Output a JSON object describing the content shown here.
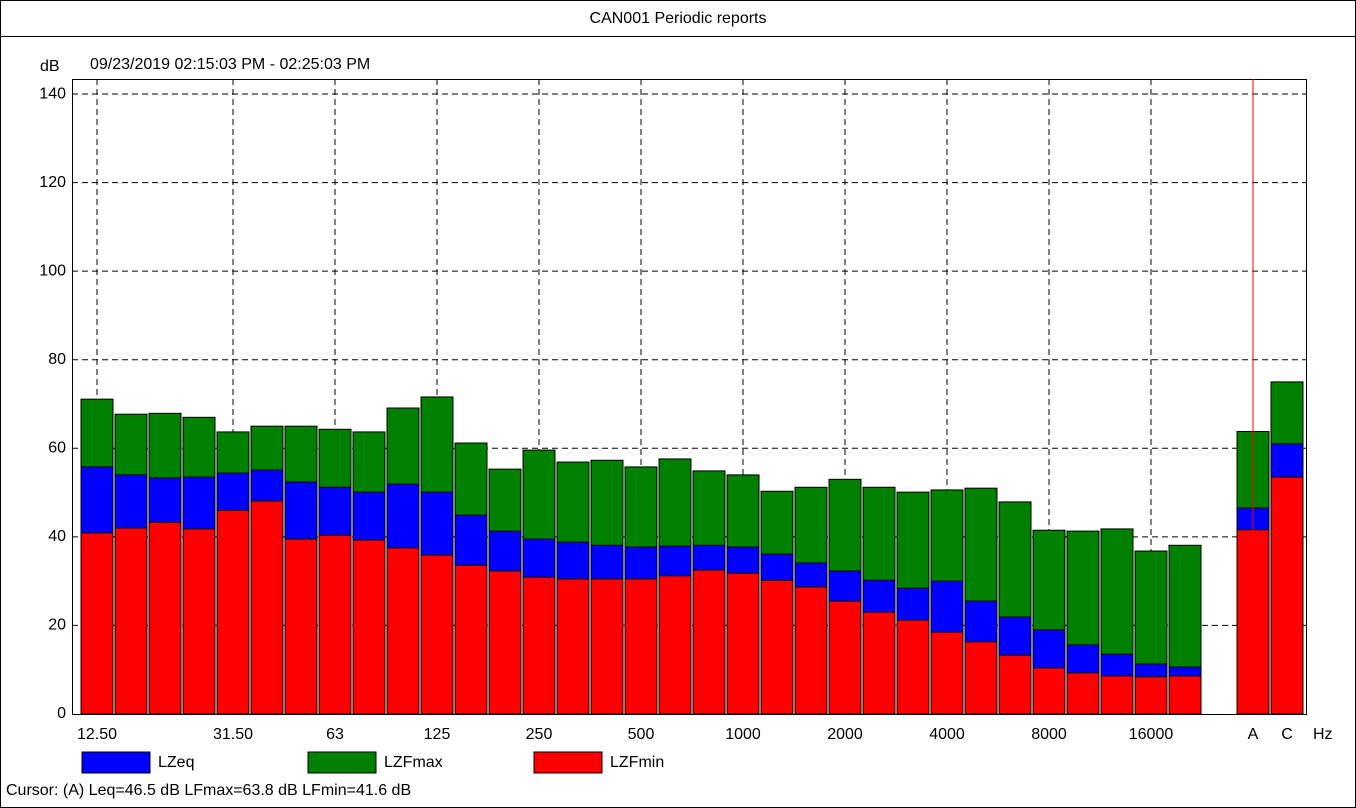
{
  "chart_data": {
    "type": "bar",
    "title": "CAN001 Periodic reports",
    "y_label": "dB",
    "subtitle": "09/23/2019 02:15:03 PM - 02:25:03 PM",
    "x_label": "Hz",
    "cursor_text": "Cursor: (A)  Leq=46.5 dB  LFmax=63.8 dB  LFmin=41.6 dB",
    "categories": [
      "12.50",
      null,
      null,
      null,
      "31.50",
      null,
      null,
      "63",
      null,
      null,
      "125",
      null,
      null,
      "250",
      null,
      null,
      "500",
      null,
      null,
      "1000",
      null,
      null,
      "2000",
      null,
      null,
      "4000",
      null,
      null,
      "8000",
      null,
      null,
      "16000",
      null,
      null,
      "A",
      "C"
    ],
    "series": [
      {
        "name": "LZeq",
        "color": "#0000ff",
        "values": [
          55.8,
          54.0,
          53.3,
          53.5,
          54.4,
          55.1,
          52.4,
          51.2,
          50.1,
          51.9,
          50.1,
          44.9,
          41.3,
          39.5,
          38.8,
          38.1,
          37.7,
          37.9,
          38.1,
          37.7,
          36.1,
          34.1,
          32.3,
          30.2,
          28.4,
          30.0,
          25.5,
          21.9,
          19.0,
          15.6,
          13.5,
          11.3,
          10.6,
          null,
          46.5,
          61.0
        ]
      },
      {
        "name": "LZFmax",
        "color": "#008000",
        "values": [
          71.1,
          67.7,
          67.9,
          67.0,
          63.7,
          65.0,
          65.0,
          64.3,
          63.7,
          69.1,
          71.6,
          61.2,
          55.3,
          59.6,
          56.9,
          57.3,
          55.8,
          57.6,
          54.9,
          54.0,
          50.3,
          51.2,
          53.0,
          51.2,
          50.1,
          50.6,
          51.0,
          47.9,
          41.5,
          41.3,
          41.8,
          36.8,
          38.1,
          null,
          63.8,
          75.0
        ]
      },
      {
        "name": "LZFmin",
        "color": "#ff0000",
        "values": [
          40.9,
          42.0,
          43.3,
          41.8,
          46.0,
          48.1,
          39.5,
          40.4,
          39.3,
          37.5,
          35.9,
          33.6,
          32.3,
          30.9,
          30.5,
          30.5,
          30.5,
          31.2,
          32.5,
          31.8,
          30.2,
          28.7,
          25.5,
          23.0,
          21.2,
          18.5,
          16.3,
          13.3,
          10.4,
          9.3,
          8.6,
          8.4,
          8.6,
          null,
          41.6,
          53.5
        ]
      }
    ],
    "ylim": [
      0,
      143.4
    ],
    "yticks": [
      0,
      20,
      40,
      60,
      80,
      100,
      120,
      140
    ],
    "grid": true
  }
}
